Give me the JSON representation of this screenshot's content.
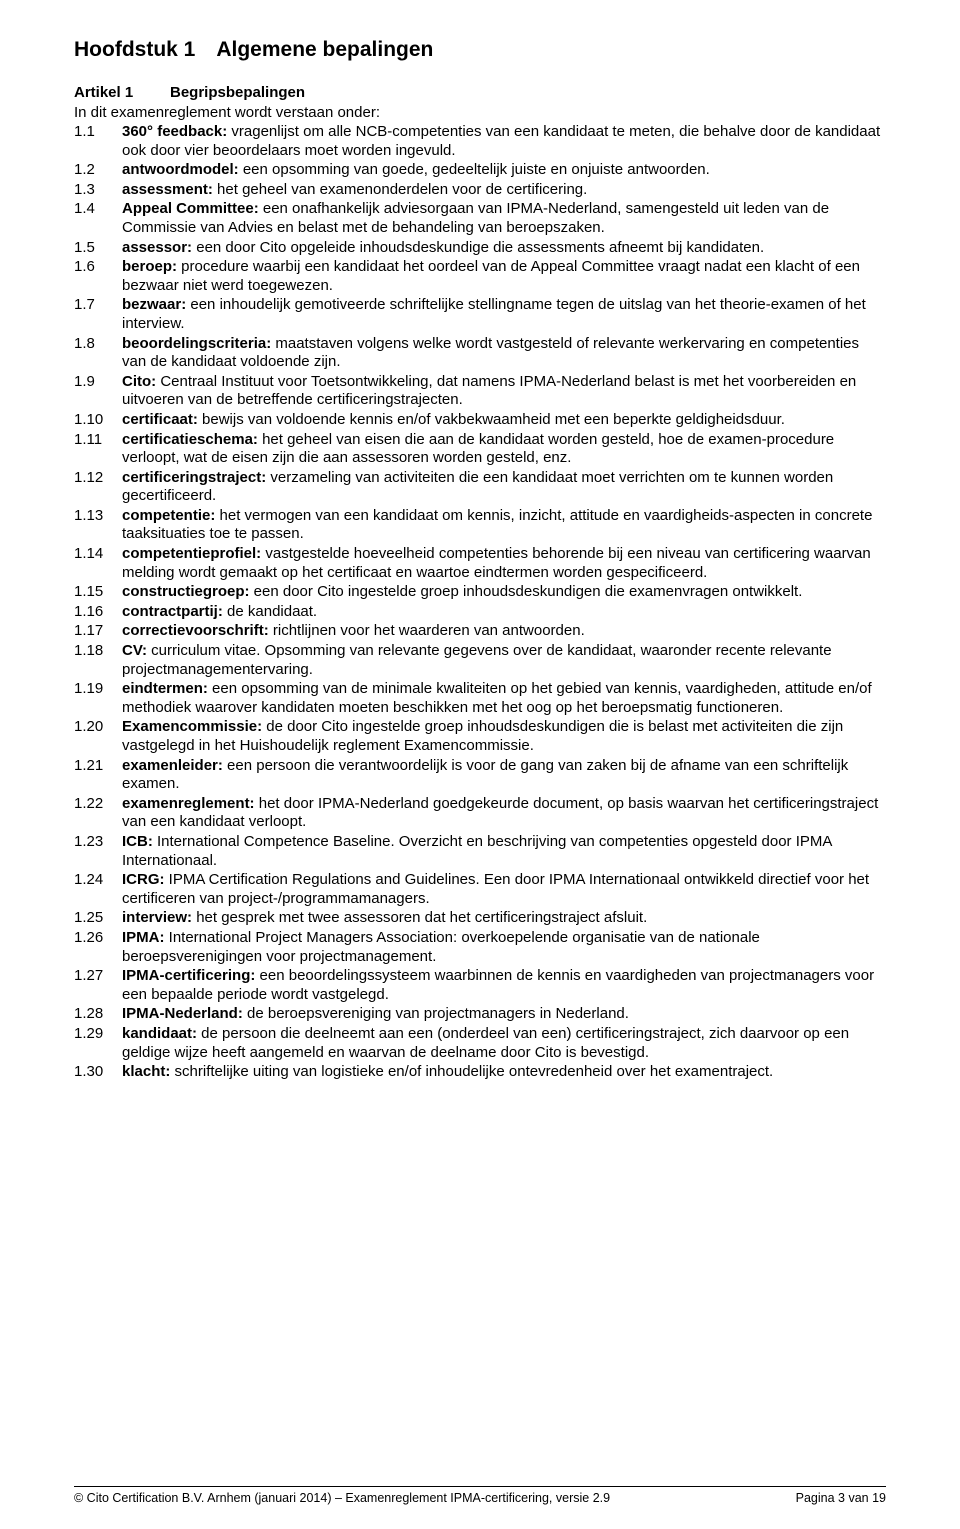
{
  "chapter": {
    "label": "Hoofdstuk 1",
    "title": "Algemene bepalingen",
    "gap": " "
  },
  "article": {
    "num": "Artikel 1",
    "title": "Begripsbepalingen"
  },
  "intro": "In dit examenreglement wordt verstaan onder:",
  "defs": [
    {
      "num": "1.1",
      "term": "360° feedback:",
      "text": " vragenlijst om alle NCB-competenties van een kandidaat te meten, die behalve door de kandidaat ook door vier beoordelaars moet worden ingevuld."
    },
    {
      "num": "1.2",
      "term": "antwoordmodel:",
      "text": " een opsomming van goede, gedeeltelijk juiste en onjuiste antwoorden."
    },
    {
      "num": "1.3",
      "term": "assessment:",
      "text": " het geheel van examenonderdelen voor de certificering."
    },
    {
      "num": "1.4",
      "term": "Appeal Committee:",
      "text": " een onafhankelijk adviesorgaan van IPMA-Nederland, samengesteld uit leden van de Commissie van Advies en belast met de behandeling van beroepszaken."
    },
    {
      "num": "1.5",
      "term": "assessor:",
      "text": " een door Cito opgeleide inhoudsdeskundige die assessments afneemt bij kandidaten."
    },
    {
      "num": "1.6",
      "term": "beroep:",
      "text": " procedure waarbij een kandidaat het oordeel van de Appeal Committee vraagt nadat een klacht of een bezwaar niet werd toegewezen."
    },
    {
      "num": "1.7",
      "term": "bezwaar:",
      "text": " een inhoudelijk gemotiveerde schriftelijke stellingname tegen de uitslag van het theorie-examen of het interview."
    },
    {
      "num": "1.8",
      "term": "beoordelingscriteria:",
      "text": " maatstaven volgens welke wordt vastgesteld of relevante werkervaring en competenties van de kandidaat voldoende zijn."
    },
    {
      "num": "1.9",
      "term": "Cito:",
      "text": " Centraal Instituut voor Toetsontwikkeling, dat namens IPMA-Nederland belast is met het voorbereiden en uitvoeren van de betreffende certificeringstrajecten."
    },
    {
      "num": "1.10",
      "term": "certificaat:",
      "text": " bewijs van voldoende kennis en/of vakbekwaamheid met een beperkte geldigheidsduur."
    },
    {
      "num": "1.11",
      "term": "certificatieschema:",
      "text": " het geheel van eisen die aan de kandidaat worden gesteld, hoe de examen-procedure verloopt, wat de eisen zijn die aan assessoren worden gesteld, enz."
    },
    {
      "num": "1.12",
      "term": "certificeringstraject:",
      "text": " verzameling van activiteiten die een kandidaat moet verrichten om te kunnen worden gecertificeerd."
    },
    {
      "num": "1.13",
      "term": "competentie:",
      "text": " het vermogen van een kandidaat om kennis, inzicht, attitude en vaardigheids-aspecten in concrete taaksituaties toe te passen."
    },
    {
      "num": "1.14",
      "term": "competentieprofiel:",
      "text": " vastgestelde hoeveelheid competenties behorende bij een niveau van certificering waarvan melding wordt gemaakt op het certificaat en waartoe eindtermen worden gespecificeerd."
    },
    {
      "num": "1.15",
      "term": "constructiegroep:",
      "text": " een door Cito ingestelde groep inhoudsdeskundigen die examenvragen ontwikkelt."
    },
    {
      "num": "1.16",
      "term": "contractpartij:",
      "text": " de kandidaat."
    },
    {
      "num": "1.17",
      "term": "correctievoorschrift:",
      "text": " richtlijnen voor het waarderen van antwoorden."
    },
    {
      "num": "1.18",
      "term": "CV:",
      "text": " curriculum vitae. Opsomming van relevante gegevens over de kandidaat, waaronder recente relevante projectmanagementervaring."
    },
    {
      "num": "1.19",
      "term": "eindtermen:",
      "text": " een opsomming van de minimale kwaliteiten op het gebied van kennis, vaardigheden, attitude en/of methodiek waarover kandidaten moeten beschikken met het oog op het beroepsmatig functioneren."
    },
    {
      "num": "1.20",
      "term": "Examencommissie:",
      "text": " de door Cito ingestelde groep inhoudsdeskundigen die is belast met activiteiten die zijn vastgelegd in het Huishoudelijk reglement Examencommissie."
    },
    {
      "num": "1.21",
      "term": "examenleider:",
      "text": " een persoon die verantwoordelijk is voor de gang van zaken bij de afname van een schriftelijk examen."
    },
    {
      "num": "1.22",
      "term": "examenreglement:",
      "text": " het door IPMA-Nederland goedgekeurde document, op basis waarvan het certificeringstraject van een kandidaat verloopt."
    },
    {
      "num": "1.23",
      "term": "ICB:",
      "text": " International Competence Baseline. Overzicht en beschrijving van competenties opgesteld door IPMA Internationaal."
    },
    {
      "num": "1.24",
      "term": "ICRG:",
      "text": " IPMA Certification Regulations and Guidelines. Een door IPMA Internationaal ontwikkeld directief voor het certificeren van project-/programmamanagers."
    },
    {
      "num": "1.25",
      "term": "interview:",
      "text": " het gesprek met twee assessoren dat het certificeringstraject afsluit."
    },
    {
      "num": "1.26",
      "term": "IPMA:",
      "text": " International Project Managers Association: overkoepelende organisatie van de nationale beroepsverenigingen voor projectmanagement."
    },
    {
      "num": "1.27",
      "term": "IPMA-certificering:",
      "text": " een beoordelingssysteem waarbinnen de kennis en vaardigheden van projectmanagers voor een bepaalde periode wordt vastgelegd."
    },
    {
      "num": "1.28",
      "term": "IPMA-Nederland:",
      "text": " de beroepsvereniging van projectmanagers in Nederland."
    },
    {
      "num": "1.29",
      "term": "kandidaat:",
      "text": " de persoon die deelneemt aan een (onderdeel van een) certificeringstraject, zich daarvoor op een geldige wijze heeft aangemeld en waarvan de deelname door Cito is bevestigd."
    },
    {
      "num": "1.30",
      "term": "klacht:",
      "text": " schriftelijke uiting van logistieke en/of inhoudelijke ontevredenheid over het examentraject."
    }
  ],
  "footer": {
    "left": "© Cito Certification B.V. Arnhem (januari 2014) – Examenreglement IPMA-certificering, versie 2.9",
    "right": "Pagina 3 van 19"
  }
}
